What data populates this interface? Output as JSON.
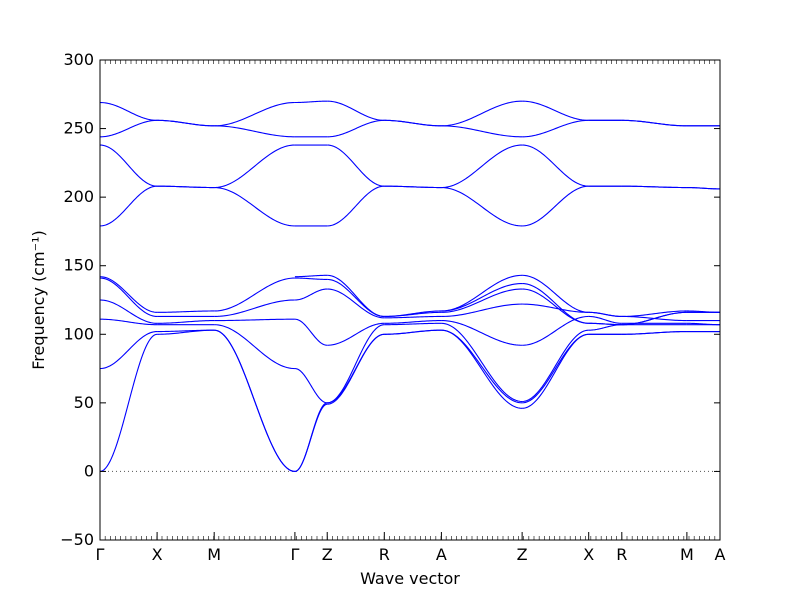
{
  "chart_data": {
    "type": "line",
    "title": "",
    "xlabel": "Wave vector",
    "ylabel": "Frequency (cm⁻¹)",
    "ylim": [
      -50,
      300
    ],
    "y_ticks": [
      -50,
      0,
      50,
      100,
      150,
      200,
      250,
      300
    ],
    "grid": false,
    "line_color": "#0000ff",
    "zero_line": {
      "y": 0,
      "style": "dotted",
      "color": "#555555"
    },
    "high_symmetry_points": [
      {
        "label": "Γ",
        "x": 0
      },
      {
        "label": "X",
        "x": 0.5
      },
      {
        "label": "M",
        "x": 1.0
      },
      {
        "label": "Γ",
        "x": 1.707
      },
      {
        "label": "Z",
        "x": 1.99
      },
      {
        "label": "R",
        "x": 2.49
      },
      {
        "label": "A",
        "x": 2.99
      },
      {
        "label": "Z",
        "x": 3.697
      },
      {
        "label": "X",
        "x": 4.28
      },
      {
        "label": "R",
        "x": 4.57
      },
      {
        "label": "M",
        "x": 5.14
      },
      {
        "label": "A",
        "x": 5.43
      }
    ],
    "segments": [
      {
        "from": "Γ",
        "to": "X",
        "branches": [
          [
            0,
            100
          ],
          [
            75,
            102
          ],
          [
            111,
            107
          ],
          [
            125,
            108
          ],
          [
            141,
            113
          ],
          [
            142,
            116
          ],
          [
            179,
            208
          ],
          [
            238,
            208
          ],
          [
            244,
            256
          ],
          [
            269,
            256
          ]
        ]
      },
      {
        "from": "X",
        "to": "M",
        "branches": [
          [
            100,
            103
          ],
          [
            102,
            103
          ],
          [
            107,
            107
          ],
          [
            108,
            110
          ],
          [
            113,
            113
          ],
          [
            116,
            117
          ],
          [
            208,
            207
          ],
          [
            208,
            207
          ],
          [
            256,
            252
          ],
          [
            256,
            252
          ]
        ]
      },
      {
        "from": "M",
        "to": "Γ",
        "branches": [
          [
            103,
            0
          ],
          [
            103,
            0
          ],
          [
            107,
            75
          ],
          [
            110,
            111
          ],
          [
            113,
            125
          ],
          [
            117,
            141
          ],
          [
            207,
            179
          ],
          [
            207,
            238
          ],
          [
            252,
            244
          ],
          [
            252,
            269
          ]
        ]
      },
      {
        "from": "Γ",
        "to": "Z",
        "branches": [
          [
            0,
            49
          ],
          [
            0,
            50
          ],
          [
            75,
            50
          ],
          [
            111,
            92
          ],
          [
            125,
            133
          ],
          [
            141,
            140
          ],
          [
            142,
            143
          ],
          [
            179,
            179
          ],
          [
            238,
            238
          ],
          [
            244,
            244
          ],
          [
            269,
            270
          ]
        ]
      },
      {
        "from": "Z",
        "to": "R",
        "branches": [
          [
            49,
            100
          ],
          [
            50,
            100
          ],
          [
            50,
            107
          ],
          [
            92,
            108
          ],
          [
            133,
            112
          ],
          [
            140,
            113
          ],
          [
            143,
            113
          ],
          [
            179,
            208
          ],
          [
            238,
            208
          ],
          [
            244,
            256
          ],
          [
            270,
            256
          ]
        ]
      },
      {
        "from": "R",
        "to": "A",
        "branches": [
          [
            100,
            103
          ],
          [
            100,
            103
          ],
          [
            107,
            108
          ],
          [
            108,
            110
          ],
          [
            112,
            113
          ],
          [
            113,
            116
          ],
          [
            113,
            117
          ],
          [
            208,
            207
          ],
          [
            208,
            207
          ],
          [
            256,
            252
          ],
          [
            256,
            252
          ]
        ]
      },
      {
        "from": "A",
        "to": "Z",
        "branches": [
          [
            103,
            50
          ],
          [
            103,
            46
          ],
          [
            108,
            51
          ],
          [
            110,
            92
          ],
          [
            113,
            122
          ],
          [
            116,
            133
          ],
          [
            117,
            137
          ],
          [
            117,
            143
          ],
          [
            207,
            179
          ],
          [
            207,
            238
          ],
          [
            252,
            244
          ],
          [
            252,
            270
          ]
        ]
      },
      {
        "from": "Z",
        "to": "X",
        "branches": [
          [
            50,
            100
          ],
          [
            46,
            100
          ],
          [
            51,
            103
          ],
          [
            92,
            113
          ],
          [
            122,
            116
          ],
          [
            133,
            108
          ],
          [
            137,
            108
          ],
          [
            143,
            116
          ],
          [
            179,
            208
          ],
          [
            238,
            208
          ],
          [
            244,
            256
          ],
          [
            270,
            256
          ]
        ]
      },
      {
        "from": "X",
        "to": "R",
        "branches": [
          [
            100,
            100
          ],
          [
            100,
            100
          ],
          [
            103,
            107
          ],
          [
            113,
            108
          ],
          [
            116,
            113
          ],
          [
            108,
            107
          ],
          [
            108,
            107
          ],
          [
            116,
            113
          ],
          [
            208,
            208
          ],
          [
            208,
            208
          ],
          [
            256,
            256
          ],
          [
            256,
            256
          ]
        ]
      },
      {
        "from": "R",
        "to": "M",
        "branches": [
          [
            100,
            102
          ],
          [
            100,
            102
          ],
          [
            107,
            107
          ],
          [
            108,
            108
          ],
          [
            113,
            110
          ],
          [
            107,
            116
          ],
          [
            107,
            116
          ],
          [
            113,
            117
          ],
          [
            208,
            207
          ],
          [
            208,
            207
          ],
          [
            256,
            252
          ],
          [
            256,
            252
          ]
        ]
      },
      {
        "from": "M",
        "to": "A",
        "branches": [
          [
            102,
            102
          ],
          [
            102,
            102
          ],
          [
            107,
            107
          ],
          [
            108,
            107
          ],
          [
            110,
            110
          ],
          [
            116,
            116
          ],
          [
            116,
            116
          ],
          [
            117,
            116
          ],
          [
            207,
            206
          ],
          [
            207,
            206
          ],
          [
            252,
            252
          ],
          [
            252,
            252
          ]
        ]
      }
    ]
  }
}
